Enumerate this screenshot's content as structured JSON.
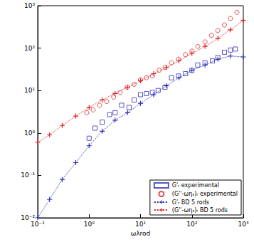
{
  "chart_data": {
    "type": "line",
    "x_label": "ωλrod",
    "log": true,
    "grid": false,
    "legend": "lower right",
    "xlim": [
      0.1,
      1000
    ],
    "ylim": [
      0.01,
      1000
    ],
    "xticks": [
      {
        "value": 0.1,
        "label": "10⁻¹"
      },
      {
        "value": 1,
        "label": "10⁰"
      },
      {
        "value": 10,
        "label": "10¹"
      },
      {
        "value": 100,
        "label": "10²"
      },
      {
        "value": 1000,
        "label": "10³"
      }
    ],
    "yticks": [
      {
        "value": 0.01,
        "label": "10⁻²"
      },
      {
        "value": 0.1,
        "label": "10⁻¹"
      },
      {
        "value": 1,
        "label": "10⁰"
      },
      {
        "value": 10,
        "label": "10¹"
      },
      {
        "value": 100,
        "label": "10²"
      },
      {
        "value": 1000,
        "label": "10³"
      }
    ],
    "series": [
      {
        "name": "G'ᵣ experimental",
        "type": "scatter",
        "color": "#2a2ab8",
        "marker": "square",
        "x": [
          1.0,
          1.3,
          1.8,
          2.5,
          3.2,
          4.3,
          6,
          7.5,
          10,
          13,
          17,
          22,
          30,
          40,
          55,
          75,
          100,
          130,
          180,
          250,
          320,
          430,
          560,
          700
        ],
        "values": [
          0.75,
          1.3,
          1.8,
          2.7,
          3,
          4.5,
          4,
          6,
          8,
          8.5,
          9,
          10,
          12,
          20,
          22,
          25,
          30,
          40,
          45,
          50,
          60,
          80,
          90,
          95
        ]
      },
      {
        "name": "(G''-ωηₛ)ᵣ experimental",
        "type": "scatter",
        "color": "#e02020",
        "marker": "circle",
        "x": [
          0.9,
          1.2,
          1.6,
          2.2,
          3,
          4,
          5.5,
          7.5,
          10,
          13,
          17,
          23,
          30,
          40,
          55,
          75,
          100,
          130,
          180,
          240,
          320,
          430,
          560,
          750
        ],
        "values": [
          3,
          3.5,
          4.5,
          5.5,
          7,
          9,
          12,
          14,
          18,
          20,
          22,
          30,
          35,
          45,
          55,
          70,
          85,
          110,
          140,
          200,
          260,
          350,
          500,
          700
        ]
      },
      {
        "name": "G'ᵣ BD 5 rods",
        "type": "line",
        "color": "#2a2ab8",
        "marker": "plus",
        "line_style": "dotted",
        "x": [
          0.1,
          0.17,
          0.3,
          0.55,
          1,
          1.8,
          3.2,
          5.6,
          10,
          18,
          32,
          56,
          100,
          180,
          320,
          560,
          1000
        ],
        "values": [
          0.01,
          0.027,
          0.08,
          0.2,
          0.5,
          1.1,
          2,
          3,
          5,
          8,
          13,
          20,
          30,
          40,
          55,
          65,
          62
        ]
      },
      {
        "name": "(G''-ωηₛ)ᵣ BD 5 rods",
        "type": "line",
        "color": "#e02020",
        "marker": "plus",
        "line_style": "dotted",
        "x": [
          0.1,
          0.17,
          0.3,
          0.55,
          1,
          1.8,
          3.2,
          5.6,
          10,
          18,
          32,
          56,
          100,
          180,
          320,
          560,
          1000
        ],
        "values": [
          0.6,
          0.9,
          1.5,
          2.5,
          4,
          6,
          8.5,
          12,
          17,
          25,
          35,
          50,
          75,
          110,
          170,
          270,
          450
        ]
      }
    ]
  }
}
